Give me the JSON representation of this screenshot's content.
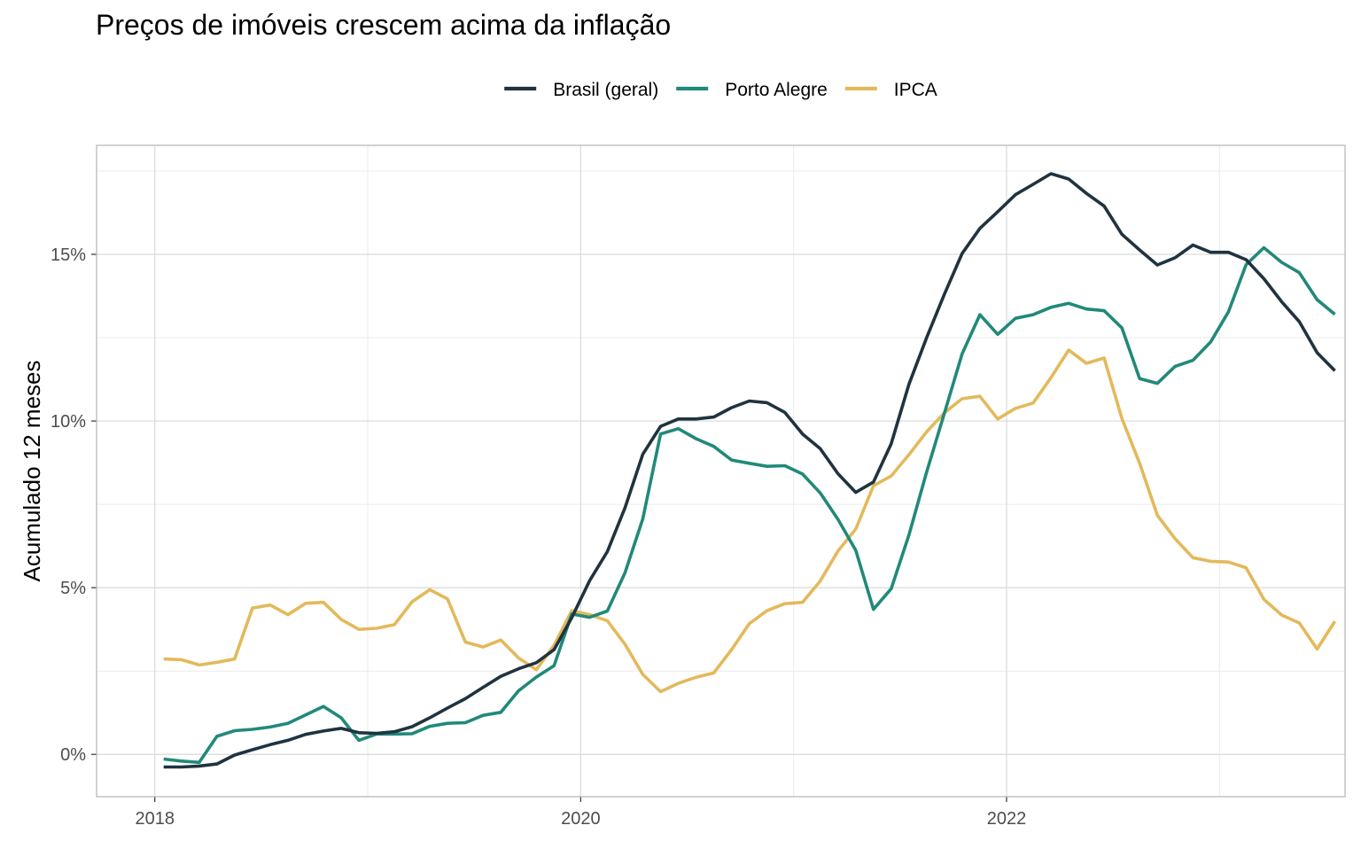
{
  "chart_data": {
    "type": "line",
    "title": "Preços de imóveis crescem acima da inflação",
    "xlabel": "",
    "ylabel": "Acumulado 12 meses",
    "x_ticks": [
      {
        "label": "2018",
        "x": 2018.0
      },
      {
        "label": "2020",
        "x": 2020.0
      },
      {
        "label": "2022",
        "x": 2022.0
      }
    ],
    "y_ticks": [
      {
        "label": "0%",
        "y": 0
      },
      {
        "label": "5%",
        "y": 5
      },
      {
        "label": "10%",
        "y": 10
      },
      {
        "label": "15%",
        "y": 15
      }
    ],
    "xlim": [
      2017.7266,
      2023.5896
    ],
    "ylim": [
      -1.27,
      18.27
    ],
    "grid": true,
    "legend_position": "top",
    "x_start": "2018-01",
    "x_step_months": 1,
    "series": [
      {
        "name": "Brasil (geral)",
        "color": "#1f3340",
        "values": [
          -0.38,
          -0.38,
          -0.35,
          -0.29,
          -0.02,
          0.14,
          0.29,
          0.42,
          0.6,
          0.7,
          0.78,
          0.65,
          0.63,
          0.68,
          0.83,
          1.1,
          1.39,
          1.67,
          2.01,
          2.34,
          2.57,
          2.75,
          3.14,
          4.1,
          5.21,
          6.08,
          7.4,
          9.0,
          9.84,
          10.06,
          10.06,
          10.12,
          10.4,
          10.6,
          10.55,
          10.26,
          9.61,
          9.17,
          8.42,
          7.86,
          8.17,
          9.32,
          11.1,
          12.51,
          13.81,
          15.03,
          15.78,
          16.28,
          16.79,
          17.1,
          17.42,
          17.26,
          16.83,
          16.45,
          15.6,
          15.13,
          14.68,
          14.9,
          15.28,
          15.06,
          15.06,
          14.84,
          14.27,
          13.58,
          12.98,
          12.05,
          11.51
        ]
      },
      {
        "name": "Porto Alegre",
        "color": "#21897a",
        "values": [
          -0.14,
          -0.2,
          -0.24,
          0.54,
          0.71,
          0.75,
          0.82,
          0.93,
          1.18,
          1.44,
          1.1,
          0.42,
          0.61,
          0.61,
          0.62,
          0.84,
          0.93,
          0.95,
          1.17,
          1.26,
          1.91,
          2.32,
          2.66,
          4.21,
          4.11,
          4.3,
          5.45,
          7.06,
          9.61,
          9.77,
          9.47,
          9.24,
          8.83,
          8.73,
          8.64,
          8.66,
          8.41,
          7.84,
          7.05,
          6.12,
          4.35,
          4.97,
          6.58,
          8.48,
          10.24,
          12.02,
          13.19,
          12.6,
          13.08,
          13.19,
          13.41,
          13.53,
          13.36,
          13.31,
          12.79,
          11.27,
          11.13,
          11.64,
          11.82,
          12.37,
          13.27,
          14.69,
          15.2,
          14.76,
          14.45,
          13.64,
          13.2
        ]
      },
      {
        "name": "IPCA",
        "color": "#e3b95b",
        "values": [
          2.86,
          2.84,
          2.68,
          2.76,
          2.86,
          4.39,
          4.48,
          4.19,
          4.53,
          4.56,
          4.05,
          3.75,
          3.78,
          3.89,
          4.58,
          4.94,
          4.66,
          3.37,
          3.22,
          3.43,
          2.89,
          2.54,
          3.27,
          4.31,
          4.19,
          4.01,
          3.3,
          2.4,
          1.88,
          2.13,
          2.31,
          2.44,
          3.14,
          3.92,
          4.31,
          4.52,
          4.56,
          5.2,
          6.1,
          6.76,
          8.06,
          8.35,
          8.99,
          9.68,
          10.25,
          10.67,
          10.74,
          10.06,
          10.38,
          10.54,
          11.3,
          12.13,
          11.73,
          11.89,
          10.07,
          8.73,
          7.17,
          6.47,
          5.9,
          5.79,
          5.77,
          5.6,
          4.65,
          4.18,
          3.94,
          3.16,
          3.99
        ]
      }
    ]
  }
}
